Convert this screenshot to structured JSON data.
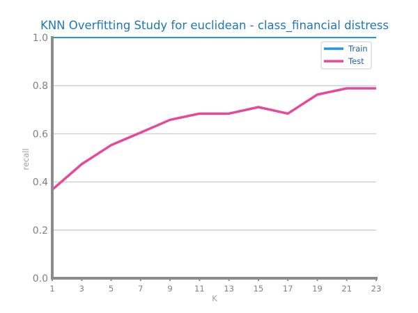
{
  "chart_data": {
    "type": "line",
    "title": "KNN Overfitting Study for euclidean - class_financial distress",
    "xlabel": "K",
    "ylabel": "recall",
    "x": [
      1,
      3,
      5,
      7,
      9,
      11,
      13,
      15,
      17,
      19,
      21,
      23
    ],
    "xlim": [
      1,
      23
    ],
    "ylim": [
      0.0,
      1.0
    ],
    "yticks": [
      0.0,
      0.2,
      0.4,
      0.6,
      0.8,
      1.0
    ],
    "ytick_labels": [
      "0.0",
      "0.2",
      "0.4",
      "0.6",
      "0.8",
      "1.0"
    ],
    "xticks": [
      1,
      3,
      5,
      7,
      9,
      11,
      13,
      15,
      17,
      19,
      21,
      23
    ],
    "xtick_labels": [
      "1",
      "3",
      "5",
      "7",
      "9",
      "11",
      "13",
      "15",
      "17",
      "19",
      "21",
      "23"
    ],
    "grid": "horizontal",
    "legend_position": "top-right",
    "series": [
      {
        "name": "Train",
        "color": "#1f9ad6",
        "values": [
          1.0,
          1.0,
          1.0,
          1.0,
          1.0,
          1.0,
          1.0,
          1.0,
          1.0,
          1.0,
          1.0,
          1.0
        ]
      },
      {
        "name": "Test",
        "color": "#e8489a",
        "values": [
          0.368,
          0.474,
          0.553,
          0.605,
          0.658,
          0.684,
          0.684,
          0.711,
          0.684,
          0.763,
          0.789,
          0.789
        ]
      }
    ]
  }
}
